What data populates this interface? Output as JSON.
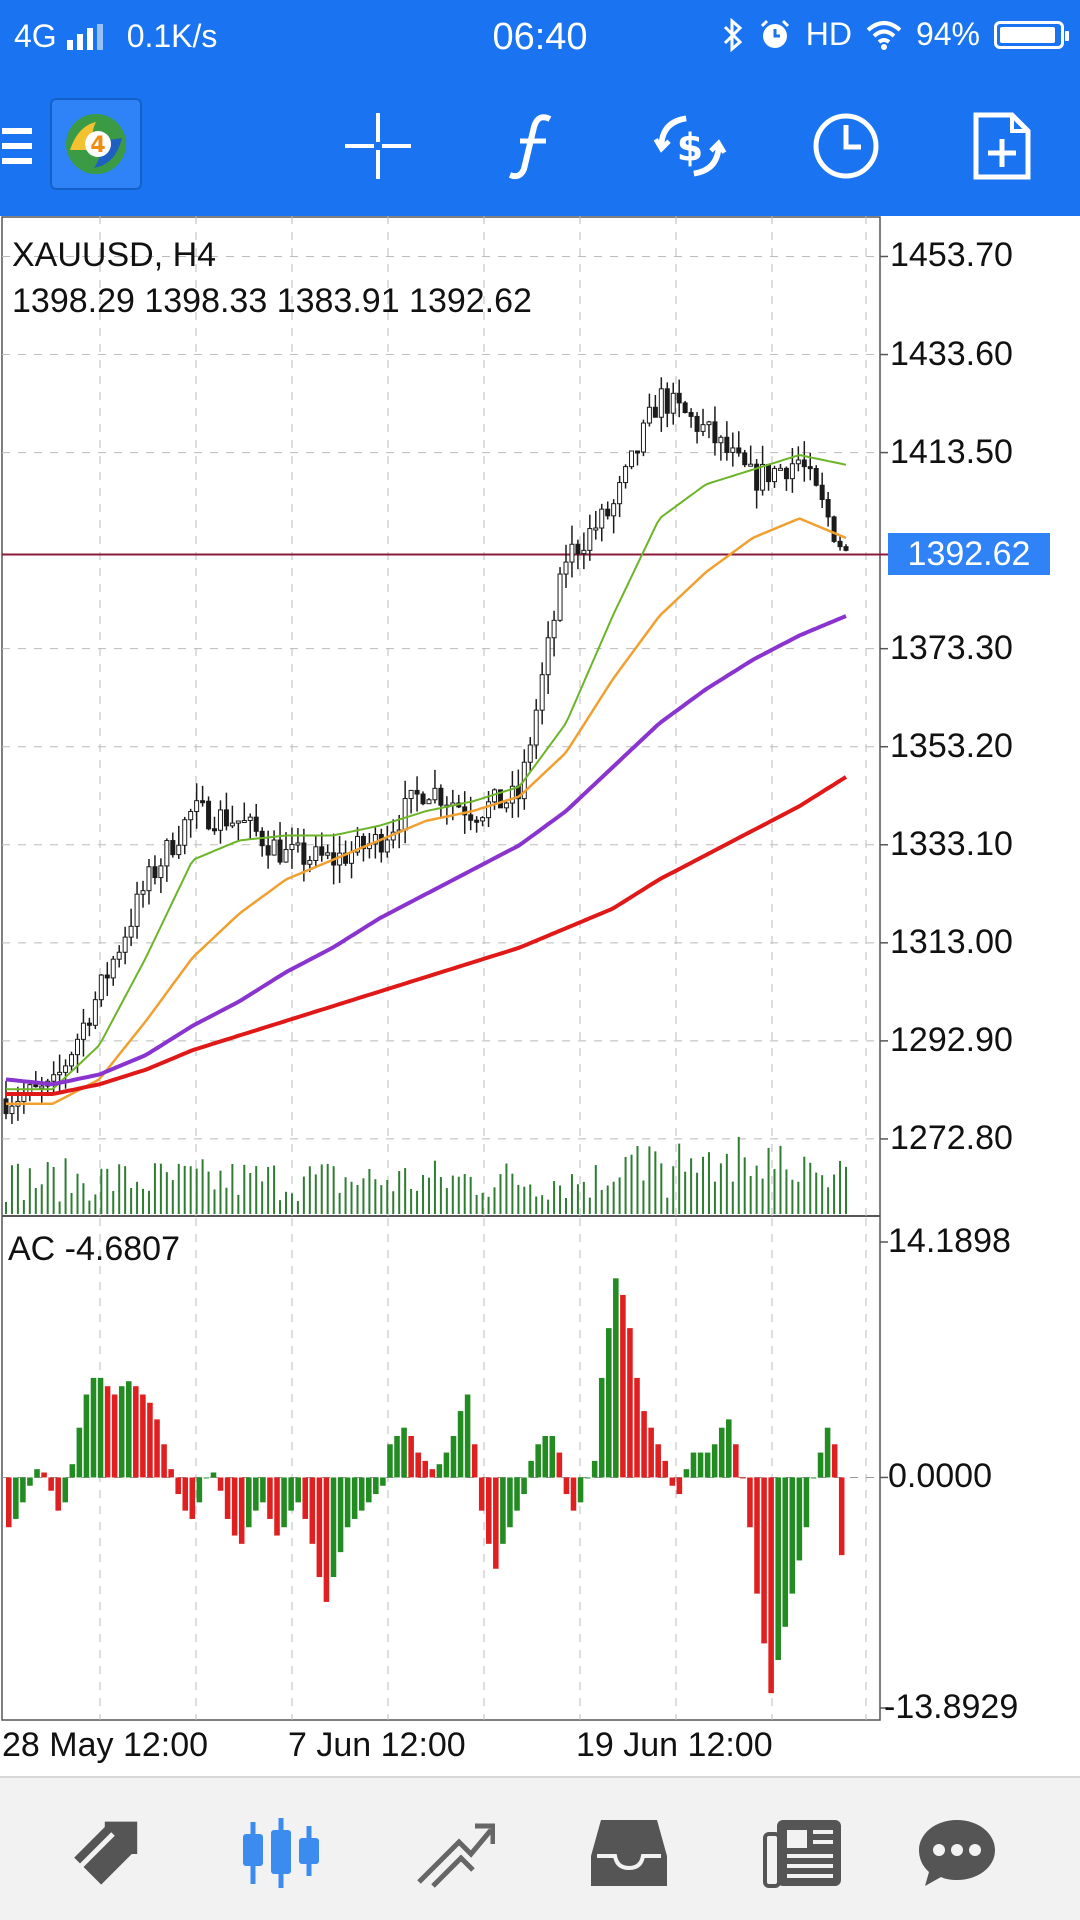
{
  "status_bar": {
    "network": "4G",
    "speed": "0.1K/s",
    "time": "06:40",
    "hd": "HD",
    "battery": "94%",
    "battery_level": 0.94
  },
  "toolbar": {
    "icons": [
      "menu-icon",
      "metatrader-logo",
      "crosshair-icon",
      "indicators-icon",
      "trade-icon",
      "timeframe-icon",
      "new-order-icon"
    ]
  },
  "colors": {
    "accent": "#1a73f0",
    "price_line": "#8b1a3a",
    "ma_green": "#6cb428",
    "ma_orange": "#f0a030",
    "ma_purple": "#8a34d0",
    "ma_red": "#e01818",
    "bar_up": "#228b22",
    "bar_down": "#e02020",
    "volume": "#2e7d32"
  },
  "chart_data": [
    {
      "type": "line",
      "title": "XAUUSD, H4",
      "ohlc_label": "1398.29 1398.33 1383.91 1392.62",
      "current_price": "1392.62",
      "y_ticks": [
        "1453.70",
        "1433.60",
        "1413.50",
        "1373.30",
        "1353.20",
        "1333.10",
        "1313.00",
        "1292.90",
        "1272.80"
      ],
      "x_ticks": [
        "28 May 12:00",
        "7 Jun 12:00",
        "19 Jun 12:00"
      ],
      "ylim": [
        1257,
        1462
      ],
      "grid": true,
      "x": [
        0,
        10,
        20,
        30,
        40,
        50,
        60,
        70,
        80,
        90,
        100,
        110,
        120,
        130,
        140,
        150,
        160,
        170,
        180
      ],
      "series": [
        {
          "name": "",
          "color": "#1b1b1b",
          "values": [
            1281,
            1283,
            1303,
            1325,
            1340,
            1338,
            1331,
            1330,
            1334,
            1345,
            1340,
            1343,
            1392,
            1402,
            1425,
            1418,
            1408,
            1412,
            1392.62
          ]
        },
        {
          "name": "",
          "color": "#6cb428",
          "values": [
            1283,
            1283,
            1292,
            1310,
            1330,
            1334,
            1335,
            1335,
            1337,
            1340,
            1342,
            1345,
            1358,
            1380,
            1400,
            1407,
            1410,
            1413,
            1411
          ]
        },
        {
          "name": "",
          "color": "#f0a030",
          "values": [
            1280,
            1280,
            1285,
            1297,
            1310,
            1319,
            1326,
            1330,
            1334,
            1338,
            1340,
            1343,
            1352,
            1367,
            1380,
            1389,
            1396,
            1400,
            1396
          ]
        },
        {
          "name": "",
          "color": "#8a34d0",
          "values": [
            1285,
            1284,
            1286,
            1290,
            1296,
            1301,
            1307,
            1312,
            1318,
            1323,
            1328,
            1333,
            1340,
            1349,
            1358,
            1365,
            1371,
            1376,
            1380
          ]
        },
        {
          "name": "",
          "color": "#e01818",
          "values": [
            1282,
            1282,
            1284,
            1287,
            1291,
            1294,
            1297,
            1300,
            1303,
            1306,
            1309,
            1312,
            1316,
            1320,
            1326,
            1331,
            1336,
            1341,
            1347
          ]
        }
      ]
    },
    {
      "type": "bar",
      "title": "AC -4.6807",
      "y_ticks": [
        "14.1898",
        "0.0000",
        "-13.8929"
      ],
      "ylim": [
        -13.8929,
        14.1898
      ],
      "values": [
        -3,
        -2.5,
        -1.5,
        -0.5,
        0.5,
        0.3,
        -0.8,
        -2,
        -1.5,
        0.8,
        3,
        5,
        6,
        6,
        5.5,
        5,
        5.5,
        5.8,
        5.5,
        5,
        4.5,
        3.5,
        2,
        0.5,
        -1,
        -2,
        -2.5,
        -1.5,
        0,
        0.3,
        -0.8,
        -2.5,
        -3.5,
        -4,
        -3,
        -2,
        -1.5,
        -2.5,
        -3.5,
        -3,
        -2,
        -1.5,
        -2.5,
        -4,
        -6,
        -7.5,
        -6,
        -4.5,
        -3,
        -2.5,
        -2,
        -1.5,
        -1,
        -0.5,
        2,
        2.5,
        3,
        2.5,
        1.5,
        1,
        0.5,
        0.8,
        1.5,
        2.5,
        4,
        5,
        2,
        -2,
        -4,
        -5.5,
        -4,
        -3,
        -2,
        -1,
        1,
        2,
        2.5,
        2.5,
        1.5,
        -1,
        -2,
        -1.5,
        0,
        1,
        6,
        9,
        12,
        11,
        9,
        6,
        4,
        3,
        2,
        1,
        -0.5,
        -1,
        0.5,
        1.5,
        1.5,
        1.5,
        2,
        3,
        3.5,
        2,
        0,
        -3,
        -7,
        -10,
        -13,
        -11,
        -9,
        -7,
        -5,
        -3,
        0,
        1.5,
        3,
        2,
        -4.6807
      ]
    }
  ],
  "bottom_nav": {
    "icons": [
      "quotes-icon",
      "chart-icon",
      "trade-icon",
      "history-icon",
      "news-icon",
      "chat-icon"
    ]
  }
}
